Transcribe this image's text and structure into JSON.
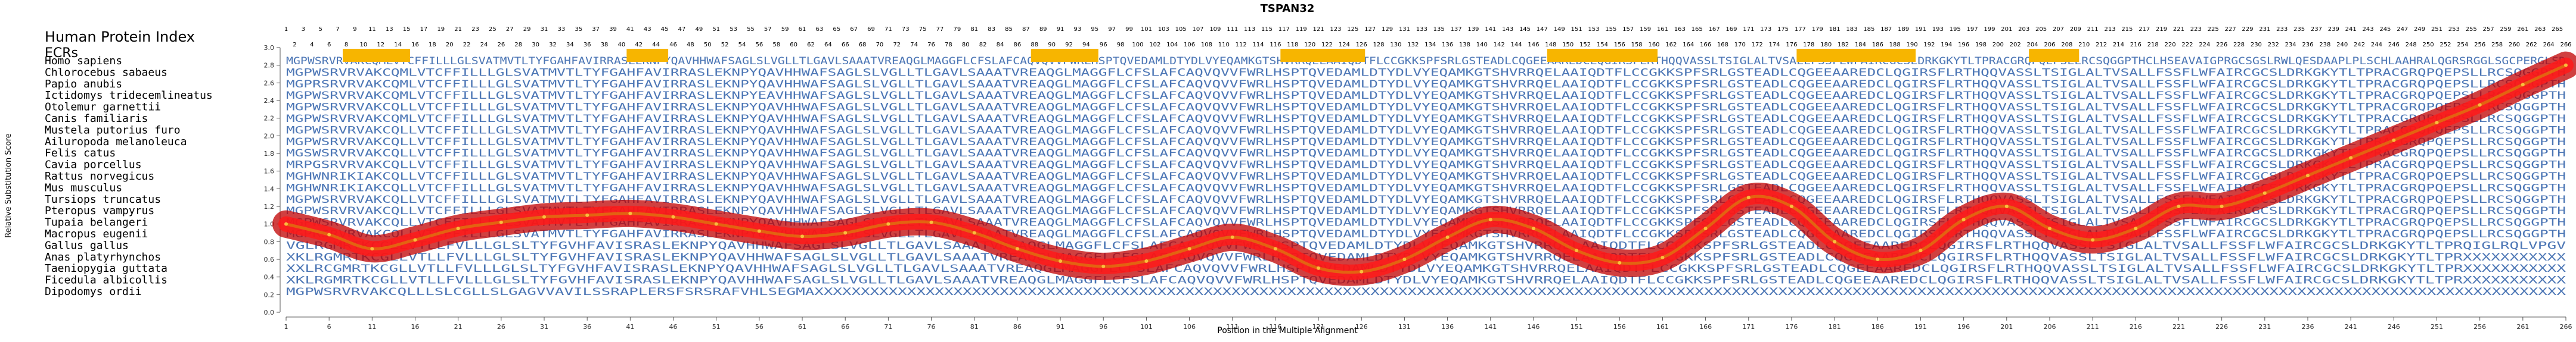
{
  "chart_data": {
    "type": "line",
    "title": "TSPAN32",
    "xlabel": "Position in the Multiple Alignment",
    "ylabel": "Relative Substitution Score",
    "ylim": [
      0,
      3.0
    ],
    "xlim": [
      1,
      266
    ],
    "y_ticks": [
      0,
      0.2,
      0.4,
      0.6,
      0.8,
      1.0,
      1.2,
      1.4,
      1.6,
      1.8,
      2.0,
      2.2,
      2.4,
      2.6,
      2.8,
      3.0
    ],
    "x_ticks": [
      1,
      6,
      11,
      16,
      21,
      26,
      31,
      36,
      41,
      46,
      51,
      56,
      61,
      66,
      71,
      76,
      81,
      86,
      91,
      96,
      101,
      106,
      111,
      116,
      121,
      126,
      131,
      136,
      141,
      146,
      151,
      156,
      161,
      166,
      171,
      176,
      181,
      186,
      191,
      196,
      201,
      206,
      211,
      216,
      221,
      226,
      231,
      236,
      241,
      246,
      251,
      256,
      261,
      266
    ],
    "legend_title": "Human Protein Index",
    "ecr_label": "ECRs",
    "ecr_regions": [
      [
        8,
        15
      ],
      [
        41,
        45
      ],
      [
        88,
        95
      ],
      [
        117,
        126
      ],
      [
        148,
        160
      ],
      [
        177,
        190
      ],
      [
        204,
        209
      ]
    ],
    "species": [
      "Homo sapiens",
      "Chlorocebus sabaeus",
      "Papio anubis",
      "Ictidomys tridecemlineatus",
      "Otolemur garnettii",
      "Canis familiaris",
      "Mustela putorius furo",
      "Ailuropoda melanoleuca",
      "Felis catus",
      "Cavia porcellus",
      "Rattus norvegicus",
      "Mus musculus",
      "Tursiops truncatus",
      "Pteropus vampyrus",
      "Tupaia belangeri",
      "Macropus eugenii",
      "Gallus gallus",
      "Anas platyrhynchos",
      "Taeniopygia guttata",
      "Ficedula albicollis",
      "Dipodomys ordii"
    ],
    "sequences": [
      "MGPWSRVRVAKCQMLVTCFFILLLGLSVATMVTLTYFGAHFAVIRRASLEKNPYQAVHHWAFSAGLSLVGLLTLGAVLSAAATVREAQGLMAGGFLCFSLAFCAQVQVVFWRLHSPTQVEDAMLDTYDLVYEQAMKGTSHVRRQELAAIQDTFLCCGKKSPFSRLGSTEADLCQGEEAAREDCLQGIRSFLRTHQQVASSLTSIGLALTVSALLFSSFLWFAIRCGCSLDRKGKYTLTPRACGRQPQEPSLLRCSQGGPTHCLHSEAVAIGPRGCSGSLRWLQESDAAPLPLSCHLAAHRALQGRSRGGLSGCPERGLSD",
      "MGPWSRVRVAKCQMLVTCFFILLLGLSVATMVTLTYFGAHFAVIRRASLEKNPYQAVHHWAFSAGLSLVGLLTLGAVLSAAATVREAQGLMAGGFLCFSLAFCAQVQVVFWRLHSPTQVEDAMLDTYDLVYEQAMKGTSHVRRQELAAIQDTFLCCGKKSPFSRLGSTEADLCQGEEAAREDCLQGIRSFLRTHQQVASSLTSIGLALTVSALLFSSFLWFAIRCGCSLDRKGKYTLTPRACGRQPQEPSLLRCSQGGPTH",
      "MGPRSRVRVAKCQMLVTCFFILLLGLSVATMVTLTYFGAHFAVIRRASLEKNPYQAVHHWAFSAGLSLVGLLTLGAVLSAAATVREAQGLMAGGFLCFSLAFCAQVQVVFWRLHSPTQVEDAMLDTYDLVYEQAMKGTSHVRRQELAAIQDTFLCCGKKSPFSRLGSTEADLCQGEEAAREDCLQGIRSFLRTHQQVASSLTSIGLALTVSALLFSSFLWFAIRCGCSLDRKGKYTLTPRACGRQPQEPSLLRCSQGGPTH",
      "MGPWSRVRVAKCQMLVTCFFILLLGLSVATMVTLTYFGAHFAVIRRASLEKNPYEAVHHWAFSAGLSLVGLLTLGAVLSAAATVREAQGLMAGGFLCFSLAFCAQVQVVFWRLHSPTQVEDAMLDTYDLVYEQAMKGTSHVRRQELAAIQDTFLCCGKKSPFSRLGSTEADLCQGEEAAREDCLQGIRSFLRTHQQVASSLTSIGLALTVSALLFSSFLWFAIRCGCSLDRKGKYTLTPRACGRQPQEPSLLRCSQGGPTH",
      "MGPWSRVRVAKCQLLVTCFFILLLGLSVATMVTLTYFGAHFAVIRRASLEKNPYQAVHHWAFSAGLSLVGLLTLGAVLSAAATVREAQGLMAGGFLCFSLAFCAQVQVVFWRLHSPTQVEDAMLDTYDLVYEQAMKGTSHVRRQELAAIQDTFLCCGKKSPFSRLGSTEADLCQGEEAAREDCLQGIRSFLRTHQQVASSLTSIGLALTVSALLFSSFLWFAIRCGCSLDRKGKYTLTPRACGRQPQEPSLLRCSQGGPTH",
      "MGPWSRVRVAKCQMLVTCFFILLLGLSVATMVTLTYFGAHFAVIRRASLEKNPYQAVHHWAFSAGLSLVGLLTLGAVLSAAATVREAQGLMAGGFLCFSLAFCAQVQVVFWRLHSPTQVEDAMLDTYDLVYEQAMKGTSHVRRQELAAIQDTFLCCGKKSPFSRLGSTEADLCQGEEAAREDCLQGIRSFLRTHQQVASSLTSIGLALTVSALLFSSFLWFAIRCGCSLDRKGKYTLTPRACGRQPQEPSLLRCSQGGPTH",
      "MGPWSRVRVAKCQLLVTCFFILLLGLSVATMVTLTYFGAHFAVIRRASLEKNPYQAVHHWAFSAGLSLVGLLTLGAVLSAAATVREAQGLMAGGFLCFSLAFCAQVQVVFWRLHSPTQVEDAMLDTYDLVYEQAMKGTSHVRRQELAAIQDTFLCCGKKSPFSRLGSTEADLCQGEEAAREDCLQGIRSFLRTHQQVASSLTSIGLALTVSALLFSSFLWFAIRCGCSLDRKGKYTLTPRACGRQPQEPSLLRCSQGGPTH",
      "MGPWSRVRVAKCQLLVTCFFILLLGLSVATMVTLTYFGAHFAVIRRASLEKNPYQAVHHWAFSAGLSLVGLLTLGAVLSAAATVREAQGLMAGGFLCFSLAFCAQVQVVFWRLHSPTQVEDAMLDTYDLVYEQAMKGTSHVRRQELAAIQDTFLCCGKKSPFSRLGSTEADLCQGEEAAREDCLQGIRSFLRTHQQVASSLTSIGLALTVSALLFSSFLWFAIRCGCSLDRKGKYTLTPRACGRQPQEPSLLRCSQGGPTH",
      "MGSWSRVRVAKCQLLVTCFFILLLGLSVATMVTLTYFGAHFAVIRRASLEKNPYQAVHHWAFSAGLSLVGLLTLGAVLSAAATVREAQGLMAGGFLCFSLAFCAQVQVVFWRLHSPTQVEDAMLDTYDLVYEQAMKGTSHVRRQELAAIQDTFLCCGKKSPFSRLGSTEADLCQGEEAAREDCLQGIRSFLRTHQQVASSLTSIGLALTVSALLFSSFLWFAIRCGCSLDRKGKYTLTPRACGRQPQEPSLLRCSQGGPTH",
      "MRPGSRVRVAKCQLLVTCFFILLLGLSVATMVTLTYFGAHFAVIRRASLEKNPYQAVHHWAFSAGLSLVGLLTLGAVLSAAATVREAQGLMAGGFLCFSLAFCAQVQVVFWRLHSPTQVEDAMLDTYDLVYEQAMKGTSHVRRQELAAIQDTFLCCGKKSPFSRLGSTEADLCQGEEAAREDCLQGIRSFLRTHQQVASSLTSIGLALTVSALLFSSFLWFAIRCGCSLDRKGKYTLTPRACGRQPQEPSLLRCSQGGPTH",
      "MGHWNRIKIAKCQLLVTCFFILLLGLSVATMVTLTYFGAHFAVIRRASLEKNPYQAVHHWAFSAGLSLVGLLTLGAVLSAAATVREAQGLMAGGFLCFSLAFCAQVQVVFWRLHSPTQVEDAMLDTYDLVYEQAMKGTSHVRRQELAAIQDTFLCCGKKSPFSRLGSTEADLCQGEEAAREDCLQGIRSFLRTHQQVASSLTSIGLALTVSALLFSSFLWFAIRCGCSLDRKGKYTLTPRACGRQPQEPSLLRCSQGGPTH",
      "MGHWNRIKIAKCQLLVTCFFILLLGLSVATMVTLTYFGAHFAVIRRASLEKNPYQAVHHWAFSAGLSLVGLLTLGAVLSAAATVREAQGLMAGGFLCFSLAFCAQVQVVFWRLHSPTQVEDAMLDTYDLVYEQAMKGTSHVRRQELAAIQDTFLCCGKKSPFSRLGSTEADLCQGEEAAREDCLQGIRSFLRTHQQVASSLTSIGLALTVSALLFSSFLWFAIRCGCSLDRKGKYTLTPRACGRQPQEPSLLRCSQGGPTH",
      "MGPWSRVRVAKCQLLVTCFFILLLGLSVATMVTLTYFGAHFAVIRRASLEKNPYQAVHHWAFSAGLSLVGLLTLGAVLSAAATVREAQGLMAGGFLCFSLAFCAQVQVVFWRLHSPTQVEDAMLDTYDLVYEQAMKGTSHVRRQELAAIQDTFLCCGKKSPFSRLGSTEADLCQGEEAAREDCLQGIRSFLRTHQQVASSLTSIGLALTVSALLFSSFLWFAIRCGCSLDRKGKYTLTPRACGRQPQEPSLLRCSQGGPTH",
      "MGPWSRVRVAKCQLLVTCFFILLLGLSVATMVTLTYFGAHFAVIRRASLEKNPYQAVHHWAFSAGLSLVGLLTLGAVLSAAATVREAQGLMAGGFLCFSLAFCAQVQVVFWRLHSPTQVEDAMLDTYDLVYEQAMKGTSHVRRQELAAIQDTFLCCGKKSPFSRLGSTEADLCQGEEAAREDCLQGIRSFLRTHQQVASSLTSIGLALTVSALLFSSFLWFAIRCGCSLDRKGKYTLTPRACGRQPQEPSLLRCSQGGPTH",
      "MGPWSRVRVAKCQLLVTCFFILLLGLSVATMVTLTYFGAHFAVIRRASLEKNPYQAVHHWAFSAGLSLVGLLTLGAVLSAAATVREAQGLMAGGFLCFSLAFCAQVQVVFWRLHSPTQVEDAMLDTYDLVYEQAMKGTSHVRRQELAAIQDTFLCCGKKSPFSRLGSTEADLCQGEEAAREDCLQGIRSFLRTHQQVASSLTSIGLALTVSALLFSSFLWFAIRCGCSLDRKGKYTLTPRACGRQPQEPSLLRCSQGGPTH",
      "MGPRSRVRVAKCQLLVTCFFILLLGLSVATMVTLTYFGAHFAVIRRASLEKNPYQAVHHWAFSAGLSLVGLLTLGAVLSAAATVREAQGLMAGGFLCFSLAFCAQVQVVFWRLHSPTQVEDAMLDTYDLVYEQAMKGTSHVRRQELAAIQDTFLCCGKKSPFSRLGSTEADLCQGEEAAREDCLQGIRSFLRTHQQVASSLTSIGLALTVSALLFSSFLWFAIRCGCSLDRKGKYTLTPRACGRQPQEPSLLRCSQGGPTH",
      "VGLRGMRTKCGLLVTLLFVLLLGLSLTYFGVHFAVISRASLEKNPYQAVHHWAFSAGLSLVGLLTLGAVLSAAATVREAQGLMAGGFLCFSLAFCAQVQVVFWRLHSPTQVEDAMLDTYDLVYEQAMKGTSHVRRQELAAIQDTFLCCGKKSPFSRLGSTEADLCQGEEAAREDCLQGIRSFLRTHQQVASSLTSIGLALTVSALLFSSFLWFAIRCGCSLDRKGKYTLTPRQIGLRQLVPGV",
      "XKLRGMRTKCGLLVTLLFVLLLGLSLTYFGVHFAVISRASLEKNPYQAVHHWAFSAGLSLVGLLTLGAVLSAAATVREAQGLMAGGFLCFSLAFCAQVQVVFWRLHSPTQVEDAMLDTYDLVYEQAMKGTSHVRRQELAAIQDTFLCCGKKSPFSRLGSTEADLCQGEEAAREDCLQGIRSFLRTHQQVASSLTSIGLALTVSALLFSSFLWFAIRCGCSLDRKGKYTLTPRXXXXXXXXXXX",
      "XXLRCGMRTKCGLLVTLLFVLLLGLSLTYFGVHFAVISRASLEKNPYQAVHHWAFSAGLSLVGLLTLGAVLSAAATVREAQGLMAGGFLCFSLAFCAQVQVVFWRLHSPTQVEDAMLDTYDLVYEQAMKGTSHVRRQELAAIQDTFLCCGKKSPFSRLGSTEADLCQGEEAAREDCLQGIRSFLRTHQQVASSLTSIGLALTVSALLFSSFLWFAIRCGCSLDRKGKYTLTPRXXXXXXXXXXX",
      "XKLRGMRTKCGLLVTLLFVLLLGLSLTYFGVHFAVISRASLEKNPYQAVHHWAFSAGLSLVGLLTLGAVLSAAATVREAQGLMAGGFLCFSLAFCAQVQVVFWRLHSPTQVEDAMLDTYDLVYEQAMKGTSHVRRQELAAIQDTFLCCGKKSPFSRLGSTEADLCQGEEAAREDCLQGIRSFLRTHQQVASSLTSIGLALTVSALLFSSFLWFAIRCGCSLDRKGKYTLTPRXXXXXXXXXXX",
      "MGPWSRVRVAKCQLLLSLCGLLSLGAGVVAVILSSRAPLERSFSRSRAFVHLSEGMAXXXXXXXXXXXXXXXXXXXXXXXXXXXXXXXXXXXXXXXXXXXXXXXXXXXXXXXXXXXXXXXXXXXXXXXXXXXXXXXXXXXXXXXXXXXXXXXXXXXXXXXXXXXXXXXXXXXXXXXXXXXXXXXXXXXXXXXXXXXXXXXXXXXXXXXXXXXXXXXXXXXXXXXXXXXXXXXXXXXXXXXXXXXXX"
    ],
    "series": [
      {
        "x": [
          1,
          6,
          11,
          16,
          21,
          26,
          31,
          36,
          41,
          46,
          51,
          56,
          61,
          66,
          71,
          76,
          81,
          86,
          91,
          96,
          101,
          106,
          111,
          116,
          121,
          126,
          131,
          136,
          141,
          146,
          151,
          156,
          161,
          166,
          171,
          176,
          181,
          186,
          191,
          196,
          201,
          206,
          211,
          216,
          221,
          226,
          231,
          236,
          241,
          246,
          251,
          256,
          261,
          266
        ],
        "values": [
          1.0,
          0.88,
          0.72,
          0.82,
          0.95,
          1.02,
          1.08,
          1.1,
          1.12,
          1.08,
          1.0,
          0.92,
          0.86,
          0.9,
          1.0,
          1.02,
          0.9,
          0.72,
          0.58,
          0.52,
          0.58,
          0.72,
          0.85,
          0.72,
          0.5,
          0.46,
          0.6,
          0.85,
          1.05,
          0.95,
          0.7,
          0.56,
          0.62,
          0.95,
          1.3,
          1.2,
          0.8,
          0.6,
          0.7,
          1.05,
          1.2,
          0.95,
          0.82,
          0.95,
          1.2,
          1.2,
          1.35,
          1.55,
          1.75,
          1.95,
          2.15,
          2.35,
          2.58,
          2.8
        ]
      }
    ]
  }
}
